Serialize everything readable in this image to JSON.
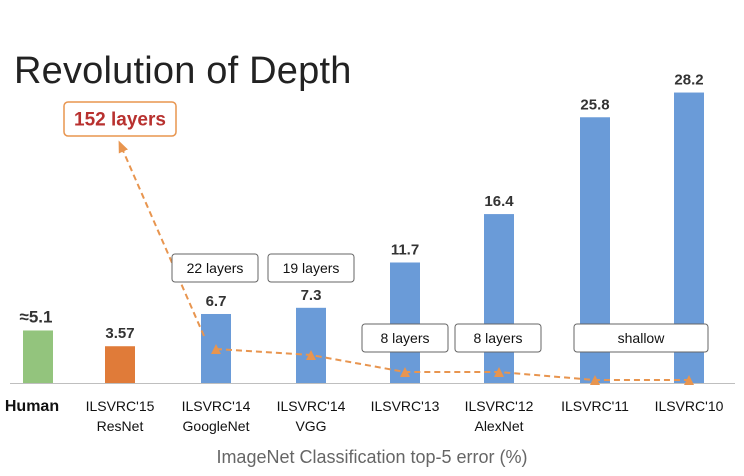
{
  "title": "Revolution of Depth",
  "chart_data": {
    "type": "bar",
    "title": "Revolution of Depth",
    "xlabel": "ImageNet Classification top-5 error (%)",
    "ylabel": "",
    "ylim": [
      0,
      30
    ],
    "grid": false,
    "categories": [
      {
        "line1": "Human",
        "line2": ""
      },
      {
        "line1": "ILSVRC'15",
        "line2": "ResNet"
      },
      {
        "line1": "ILSVRC'14",
        "line2": "GoogleNet"
      },
      {
        "line1": "ILSVRC'14",
        "line2": "VGG"
      },
      {
        "line1": "ILSVRC'13",
        "line2": ""
      },
      {
        "line1": "ILSVRC'12",
        "line2": "AlexNet"
      },
      {
        "line1": "ILSVRC'11",
        "line2": ""
      },
      {
        "line1": "ILSVRC'10",
        "line2": ""
      }
    ],
    "values": [
      5.1,
      3.57,
      6.7,
      7.3,
      11.7,
      16.4,
      25.8,
      28.2
    ],
    "value_labels": [
      "≈5.1",
      "3.57",
      "6.7",
      "7.3",
      "11.7",
      "16.4",
      "25.8",
      "28.2"
    ],
    "bar_colors": [
      "#93c47d",
      "#e07b39",
      "#6a9bd8",
      "#6a9bd8",
      "#6a9bd8",
      "#6a9bd8",
      "#6a9bd8",
      "#6a9bd8"
    ],
    "layer_annotations": [
      {
        "category_index": 1,
        "text": "152 layers",
        "style": "highlight"
      },
      {
        "category_index": 2,
        "text": "22 layers",
        "style": "box"
      },
      {
        "category_index": 3,
        "text": "19 layers",
        "style": "box"
      },
      {
        "category_index": 4,
        "text": "8 layers",
        "style": "box"
      },
      {
        "category_index": 5,
        "text": "8 layers",
        "style": "box"
      },
      {
        "category_index": 6,
        "text": "shallow",
        "style": "wide-box"
      }
    ],
    "depth_trend_color": "#e8954f",
    "highlight_color": "#b8312f"
  }
}
